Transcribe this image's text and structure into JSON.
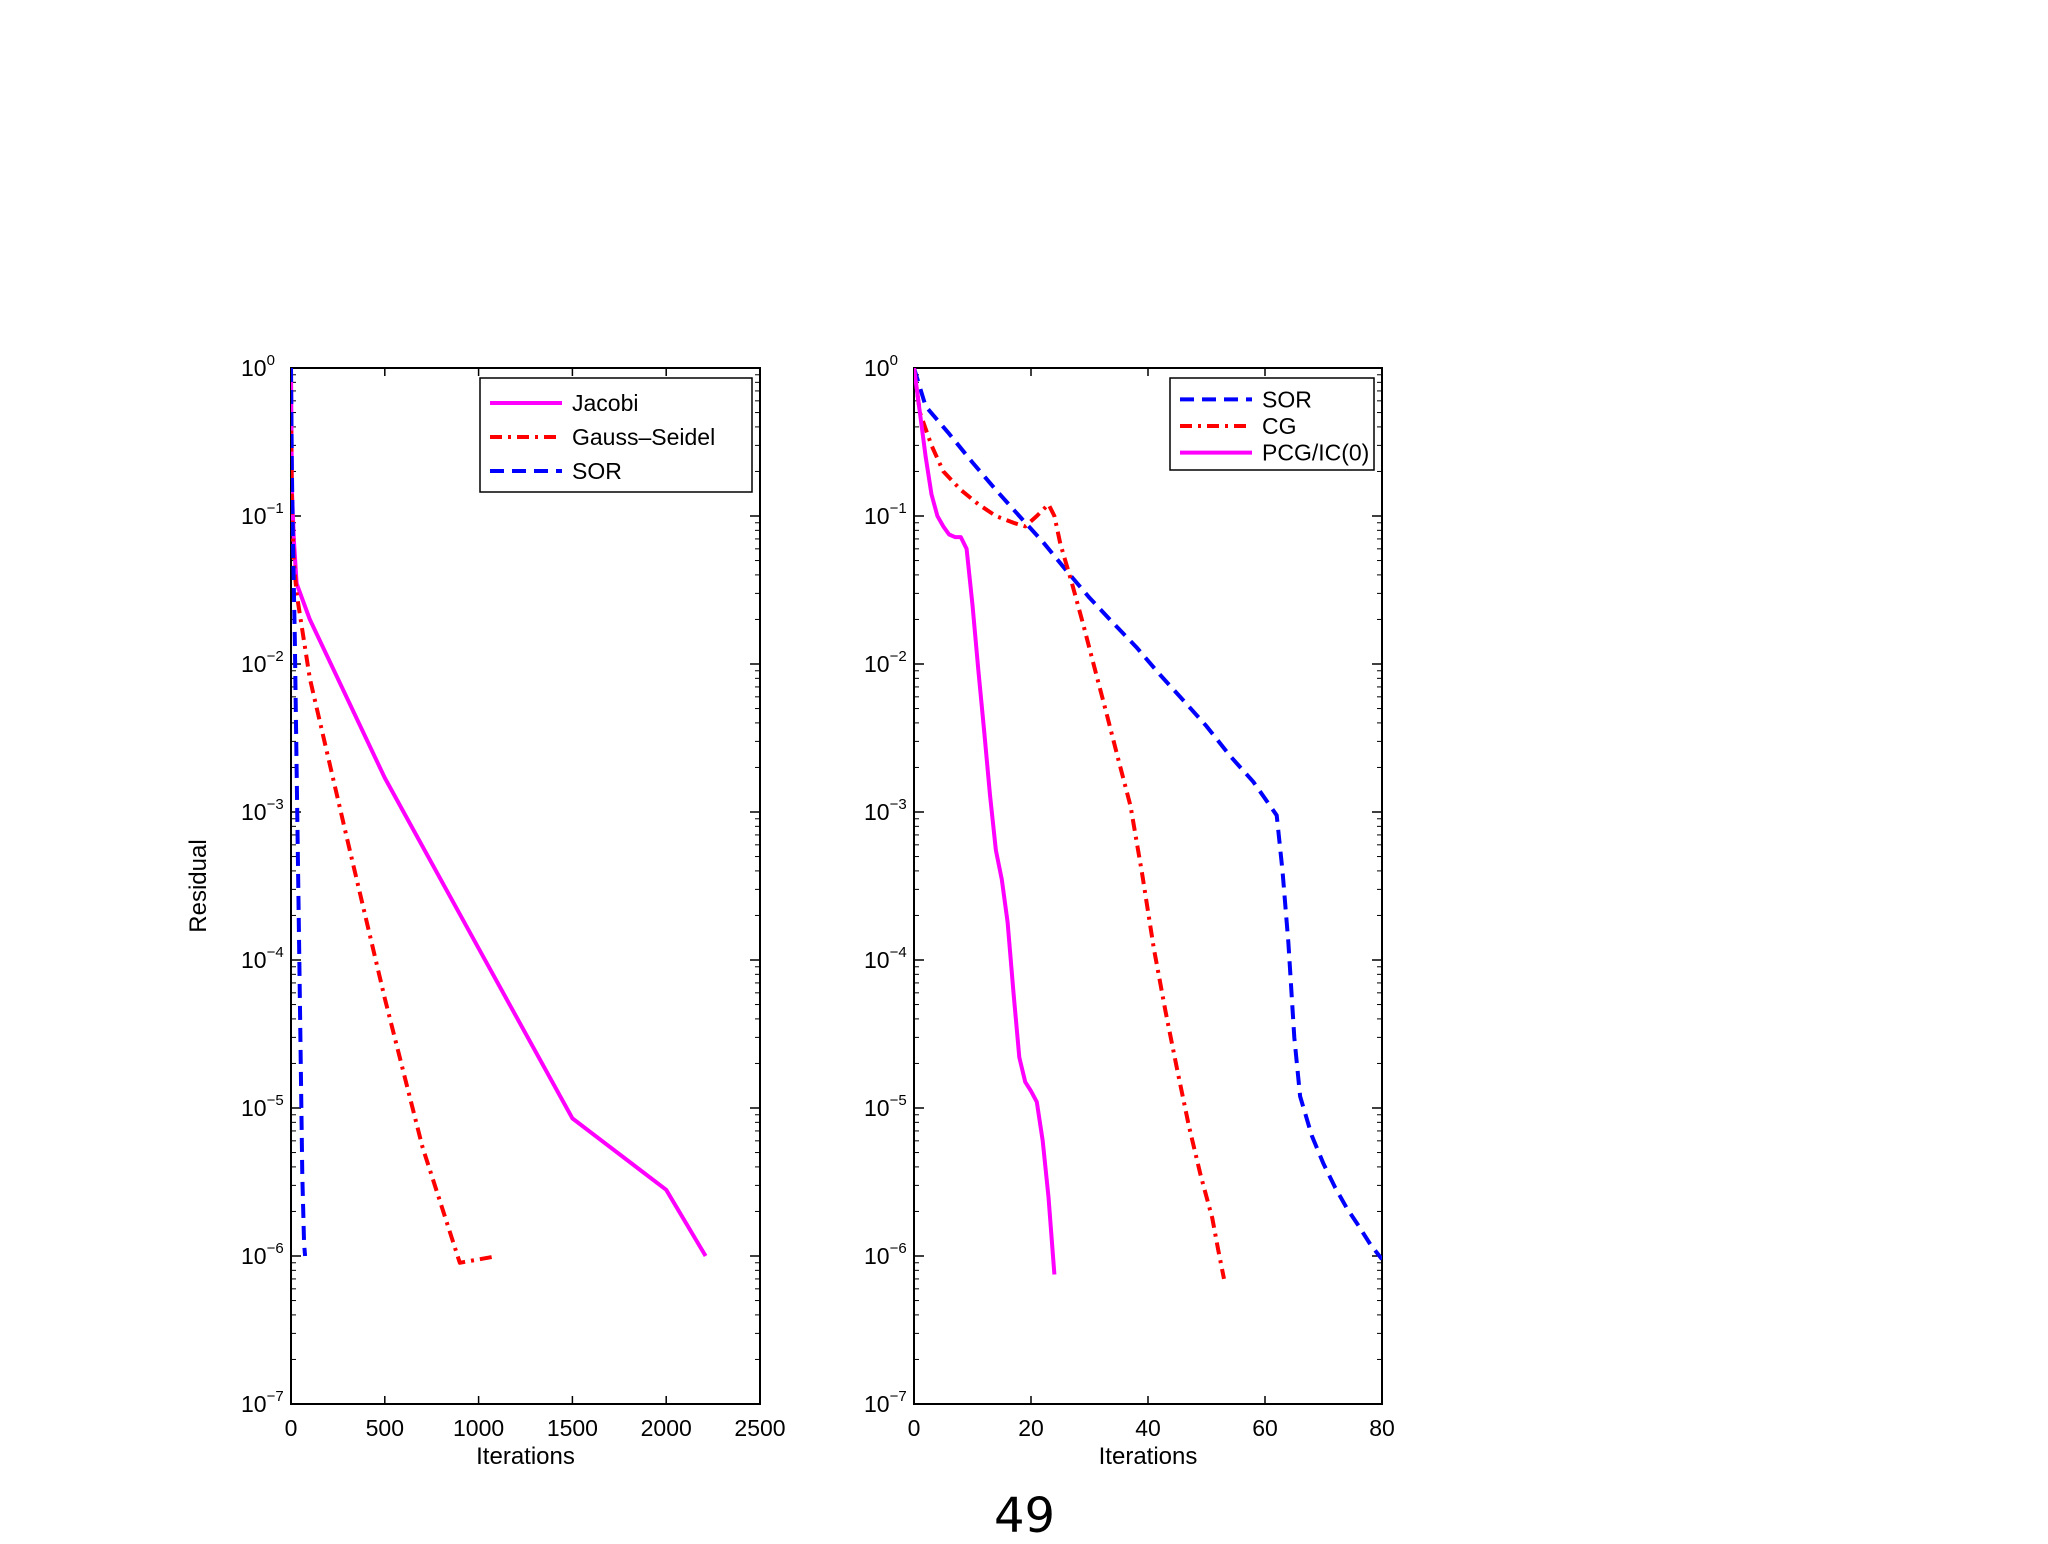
{
  "page_number": "49",
  "chart_data": [
    {
      "type": "line",
      "xlabel": "Iterations",
      "ylabel": "Residual",
      "xlim": [
        0,
        2500
      ],
      "ylim": [
        1e-07,
        1
      ],
      "yscale": "log",
      "xticks": [
        "0",
        "500",
        "1000",
        "1500",
        "2000",
        "2500"
      ],
      "yticks": [
        {
          "base": "10",
          "exp": "0"
        },
        {
          "base": "10",
          "exp": "−1"
        },
        {
          "base": "10",
          "exp": "−2"
        },
        {
          "base": "10",
          "exp": "−3"
        },
        {
          "base": "10",
          "exp": "−4"
        },
        {
          "base": "10",
          "exp": "−5"
        },
        {
          "base": "10",
          "exp": "−6"
        },
        {
          "base": "10",
          "exp": "−7"
        }
      ],
      "legend_position": "top-right",
      "series": [
        {
          "name": "Jacobi",
          "color": "#ff00ff",
          "style": "solid",
          "x": [
            0,
            5,
            15,
            30,
            100,
            500,
            1000,
            1500,
            2000,
            2210
          ],
          "y": [
            1.0,
            0.15,
            0.07,
            0.035,
            0.02,
            0.0017,
            0.00012,
            8.5e-06,
            2.8e-06,
            1e-06
          ]
        },
        {
          "name": "Gauss–Seidel",
          "color": "#ff0000",
          "style": "dashdot",
          "x": [
            0,
            5,
            15,
            30,
            100,
            300,
            500,
            700,
            900,
            1100
          ],
          "y": [
            0.5,
            0.12,
            0.05,
            0.03,
            0.008,
            0.00065,
            5.5e-05,
            5.5e-06,
            9e-07,
            1e-06
          ]
        },
        {
          "name": "SOR",
          "color": "#0000ff",
          "style": "dashed",
          "x": [
            0,
            5,
            10,
            20,
            30,
            40,
            50,
            60,
            70,
            75
          ],
          "y": [
            1.0,
            0.2,
            0.07,
            0.015,
            0.002,
            0.00025,
            3e-05,
            3.5e-06,
            1.2e-06,
            1e-06
          ]
        }
      ]
    },
    {
      "type": "line",
      "xlabel": "Iterations",
      "ylabel": "",
      "xlim": [
        0,
        80
      ],
      "ylim": [
        1e-07,
        1
      ],
      "yscale": "log",
      "xticks": [
        "0",
        "20",
        "40",
        "60",
        "80"
      ],
      "yticks": [
        {
          "base": "10",
          "exp": "0"
        },
        {
          "base": "10",
          "exp": "−1"
        },
        {
          "base": "10",
          "exp": "−2"
        },
        {
          "base": "10",
          "exp": "−3"
        },
        {
          "base": "10",
          "exp": "−4"
        },
        {
          "base": "10",
          "exp": "−5"
        },
        {
          "base": "10",
          "exp": "−6"
        },
        {
          "base": "10",
          "exp": "−7"
        }
      ],
      "legend_position": "top-right",
      "series": [
        {
          "name": "SOR",
          "color": "#0000ff",
          "style": "dashed",
          "x": [
            0,
            2,
            6,
            10,
            14,
            18,
            22,
            26,
            30,
            34,
            38,
            42,
            46,
            50,
            54,
            58,
            62,
            63,
            64,
            65,
            66,
            68,
            70,
            72,
            74,
            76,
            78,
            80
          ],
          "y": [
            1.0,
            0.55,
            0.36,
            0.23,
            0.15,
            0.1,
            0.067,
            0.043,
            0.028,
            0.019,
            0.013,
            0.0085,
            0.0057,
            0.0038,
            0.0024,
            0.0016,
            0.00095,
            0.0004,
            0.00013,
            3e-05,
            1.2e-05,
            6.5e-06,
            4.2e-06,
            2.9e-06,
            2.1e-06,
            1.6e-06,
            1.2e-06,
            9.5e-07
          ]
        },
        {
          "name": "CG",
          "color": "#ff0000",
          "style": "dashdot",
          "x": [
            0,
            1,
            3,
            5,
            8,
            11,
            14,
            17,
            19,
            21,
            23,
            24,
            25,
            27,
            29,
            31,
            33,
            35,
            37,
            39,
            41,
            43,
            45,
            47,
            49,
            51,
            52,
            53
          ],
          "y": [
            1.0,
            0.5,
            0.3,
            0.2,
            0.15,
            0.12,
            0.1,
            0.09,
            0.085,
            0.1,
            0.12,
            0.1,
            0.065,
            0.035,
            0.018,
            0.009,
            0.0045,
            0.0022,
            0.0011,
            0.00038,
            0.00012,
            4.5e-05,
            1.8e-05,
            7.5e-06,
            3.5e-06,
            1.8e-06,
            1.1e-06,
            7e-07
          ]
        },
        {
          "name": "PCG/IC(0)",
          "color": "#ff00ff",
          "style": "solid",
          "x": [
            0,
            1,
            2,
            3,
            4,
            5,
            6,
            7,
            8,
            9,
            10,
            11,
            12,
            13,
            14,
            15,
            16,
            17,
            18,
            19,
            20,
            21,
            22,
            23,
            24
          ],
          "y": [
            1.0,
            0.5,
            0.25,
            0.14,
            0.1,
            0.085,
            0.075,
            0.072,
            0.072,
            0.06,
            0.025,
            0.009,
            0.0035,
            0.0013,
            0.00055,
            0.00035,
            0.00018,
            6e-05,
            2.2e-05,
            1.5e-05,
            1.3e-05,
            1.1e-05,
            6e-06,
            2.5e-06,
            7.5e-07
          ]
        }
      ]
    }
  ]
}
